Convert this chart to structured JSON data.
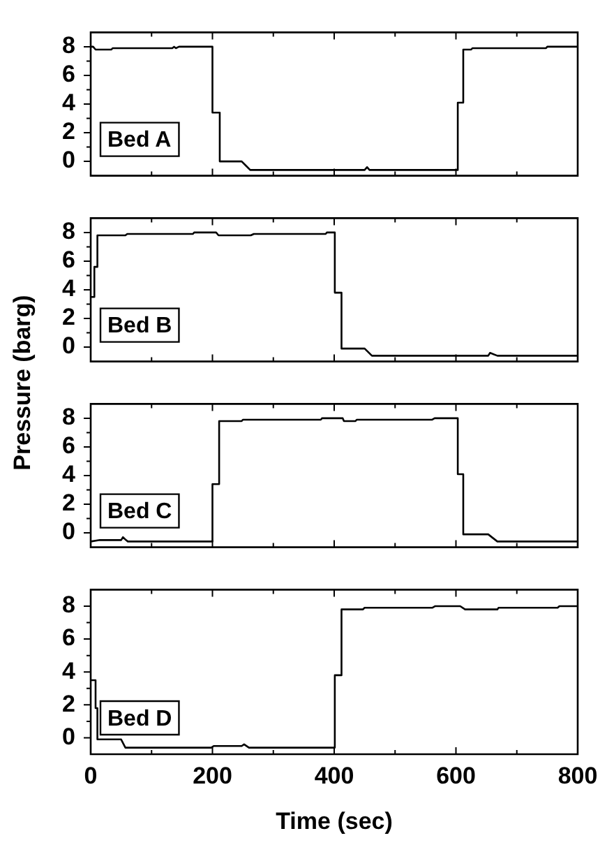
{
  "chart_data": [
    {
      "type": "line",
      "annotations": [
        "Bed A"
      ],
      "color": "#000000",
      "tick_labels": "y",
      "xlim": [
        0,
        800
      ],
      "xticks": [
        0,
        {
          "value": 100,
          "label": null
        },
        200,
        {
          "value": 300,
          "label": null
        },
        400,
        {
          "value": 500,
          "label": null
        },
        600,
        {
          "value": 700,
          "label": null
        },
        800
      ],
      "ylim": [
        -1,
        9
      ],
      "yticks": [
        0,
        {
          "value": 1,
          "label": null
        },
        2,
        {
          "value": 3,
          "label": null
        },
        4,
        {
          "value": 5,
          "label": null
        },
        6,
        {
          "value": 7,
          "label": null
        },
        8
      ],
      "x": [
        0,
        4,
        8,
        34,
        36,
        134,
        137,
        140,
        145,
        200,
        200,
        212,
        212,
        248,
        255,
        262,
        450,
        454,
        458,
        600,
        603,
        603,
        611,
        612,
        625,
        627,
        748,
        750,
        800
      ],
      "values": [
        8.0,
        8.0,
        7.8,
        7.8,
        7.9,
        7.9,
        8.0,
        7.9,
        8.0,
        8.0,
        3.4,
        3.4,
        0.0,
        0.0,
        -0.3,
        -0.6,
        -0.6,
        -0.4,
        -0.6,
        -0.6,
        -0.6,
        4.1,
        4.1,
        7.8,
        7.8,
        7.9,
        7.9,
        8.0,
        8.0
      ]
    },
    {
      "type": "line",
      "annotations": [
        "Bed B"
      ],
      "ylabel": "Pressure (barg)",
      "color": "#000000",
      "tick_labels": "y",
      "xlim": [
        0,
        800
      ],
      "xticks": [
        0,
        {
          "value": 100,
          "label": null
        },
        200,
        {
          "value": 300,
          "label": null
        },
        400,
        {
          "value": 500,
          "label": null
        },
        600,
        {
          "value": 700,
          "label": null
        },
        800
      ],
      "ylim": [
        -1,
        9
      ],
      "yticks": [
        0,
        {
          "value": 1,
          "label": null
        },
        2,
        {
          "value": 3,
          "label": null
        },
        4,
        {
          "value": 5,
          "label": null
        },
        6,
        {
          "value": 7,
          "label": null
        },
        8
      ],
      "x": [
        0,
        6,
        6,
        11,
        11,
        57,
        60,
        168,
        170,
        206,
        210,
        263,
        268,
        386,
        388,
        401,
        401,
        412,
        412,
        450,
        462,
        653,
        656,
        668,
        800
      ],
      "values": [
        3.5,
        3.5,
        5.6,
        5.6,
        7.8,
        7.8,
        7.9,
        7.9,
        8.0,
        8.0,
        7.8,
        7.8,
        7.9,
        7.9,
        8.0,
        8.0,
        3.8,
        3.8,
        -0.1,
        -0.1,
        -0.6,
        -0.6,
        -0.4,
        -0.6,
        -0.6
      ]
    },
    {
      "type": "line",
      "annotations": [
        "Bed C"
      ],
      "color": "#000000",
      "tick_labels": "y",
      "xlim": [
        0,
        800
      ],
      "xticks": [
        0,
        {
          "value": 100,
          "label": null
        },
        200,
        {
          "value": 300,
          "label": null
        },
        400,
        {
          "value": 500,
          "label": null
        },
        600,
        {
          "value": 700,
          "label": null
        },
        800
      ],
      "ylim": [
        -1,
        9
      ],
      "yticks": [
        0,
        {
          "value": 1,
          "label": null
        },
        2,
        {
          "value": 3,
          "label": null
        },
        4,
        {
          "value": 5,
          "label": null
        },
        6,
        {
          "value": 7,
          "label": null
        },
        8
      ],
      "x": [
        0,
        15,
        50,
        53,
        58,
        61,
        200,
        200,
        211,
        211,
        248,
        250,
        378,
        380,
        414,
        416,
        435,
        437,
        561,
        565,
        603,
        603,
        612,
        612,
        653,
        668,
        800
      ],
      "values": [
        -0.6,
        -0.5,
        -0.5,
        -0.3,
        -0.5,
        -0.6,
        -0.6,
        3.4,
        3.4,
        7.8,
        7.8,
        7.9,
        7.9,
        8.0,
        8.0,
        7.8,
        7.8,
        7.9,
        7.9,
        8.0,
        8.0,
        4.1,
        4.1,
        -0.1,
        -0.1,
        -0.6,
        -0.6
      ]
    },
    {
      "type": "line",
      "annotations": [
        "Bed D"
      ],
      "xlabel": "Time (sec)",
      "color": "#000000",
      "xlim": [
        0,
        800
      ],
      "xticks": [
        0,
        {
          "value": 100,
          "label": null
        },
        200,
        {
          "value": 300,
          "label": null
        },
        400,
        {
          "value": 500,
          "label": null
        },
        600,
        {
          "value": 700,
          "label": null
        },
        800
      ],
      "ylim": [
        -1,
        9
      ],
      "yticks": [
        0,
        {
          "value": 1,
          "label": null
        },
        2,
        {
          "value": 3,
          "label": null
        },
        4,
        {
          "value": 5,
          "label": null
        },
        6,
        {
          "value": 7,
          "label": null
        },
        8
      ],
      "x": [
        0,
        8,
        8,
        11,
        11,
        50,
        57,
        198,
        202,
        248,
        252,
        260,
        401,
        401,
        412,
        412,
        447,
        450,
        561,
        566,
        607,
        615,
        668,
        670,
        767,
        770,
        800
      ],
      "values": [
        3.5,
        3.5,
        1.8,
        1.8,
        -0.1,
        -0.1,
        -0.6,
        -0.6,
        -0.5,
        -0.5,
        -0.4,
        -0.6,
        -0.6,
        3.8,
        3.8,
        7.8,
        7.8,
        7.9,
        7.9,
        8.0,
        8.0,
        7.8,
        7.8,
        7.9,
        7.9,
        8.0,
        8.0
      ]
    }
  ]
}
